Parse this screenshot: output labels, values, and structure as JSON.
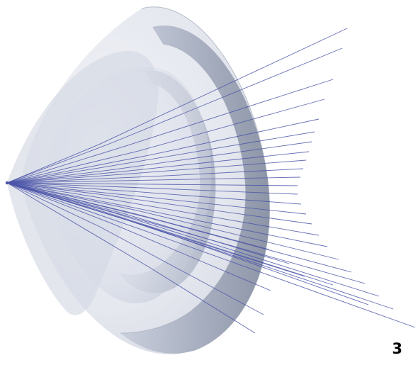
{
  "figure": {
    "number_label": "3",
    "ray_color": "#4b55a8",
    "surface_color": "#b7bfd1",
    "edge_color": "#8c95a8"
  }
}
